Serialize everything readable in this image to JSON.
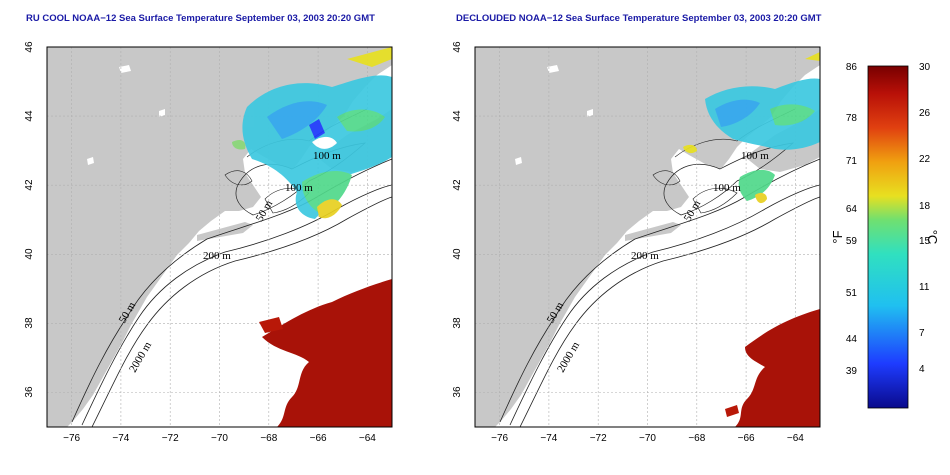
{
  "panels": [
    {
      "id": "left",
      "title": "RU COOL NOAA−12 Sea Surface Temperature September 03, 2003 20:20 GMT",
      "x_ticks": [
        "−76",
        "−74",
        "−72",
        "−70",
        "−68",
        "−66",
        "−64"
      ],
      "y_ticks": [
        "46",
        "44",
        "42",
        "40",
        "38",
        "36"
      ],
      "contour_labels": [
        "100 m",
        "100 m",
        "50 m",
        "200 m",
        "50 m",
        "2000 m"
      ]
    },
    {
      "id": "right",
      "title": "DECLOUDED NOAA−12 Sea Surface Temperature September 03, 2003 20:20 GMT",
      "x_ticks": [
        "−76",
        "−74",
        "−72",
        "−70",
        "−68",
        "−66",
        "−64"
      ],
      "y_ticks": [
        "46",
        "44",
        "42",
        "40",
        "38",
        "36"
      ],
      "contour_labels": [
        "100 m",
        "100 m",
        "50 m",
        "200 m",
        "50 m",
        "2000 m"
      ]
    }
  ],
  "map_extent": {
    "lon": [
      -77,
      -63
    ],
    "lat": [
      35,
      46
    ]
  },
  "colorbar": {
    "fahrenheit_ticks": [
      "86",
      "78",
      "71",
      "64",
      "59",
      "51",
      "44",
      "39"
    ],
    "celsius_ticks": [
      "30",
      "26",
      "22",
      "18",
      "15",
      "11",
      "7",
      "4"
    ],
    "fahrenheit_unit": "°F",
    "celsius_unit": "°C",
    "range_c": [
      0,
      30
    ]
  },
  "colors": {
    "title": "#1a1aa6",
    "land": "#c8c8c8",
    "ocean": "#ffffff",
    "grid": "#b0b0b0",
    "warm_water": "#a81208",
    "cool_water_cyan": "#3cc8e0",
    "cool_water_green": "#50d88a"
  }
}
